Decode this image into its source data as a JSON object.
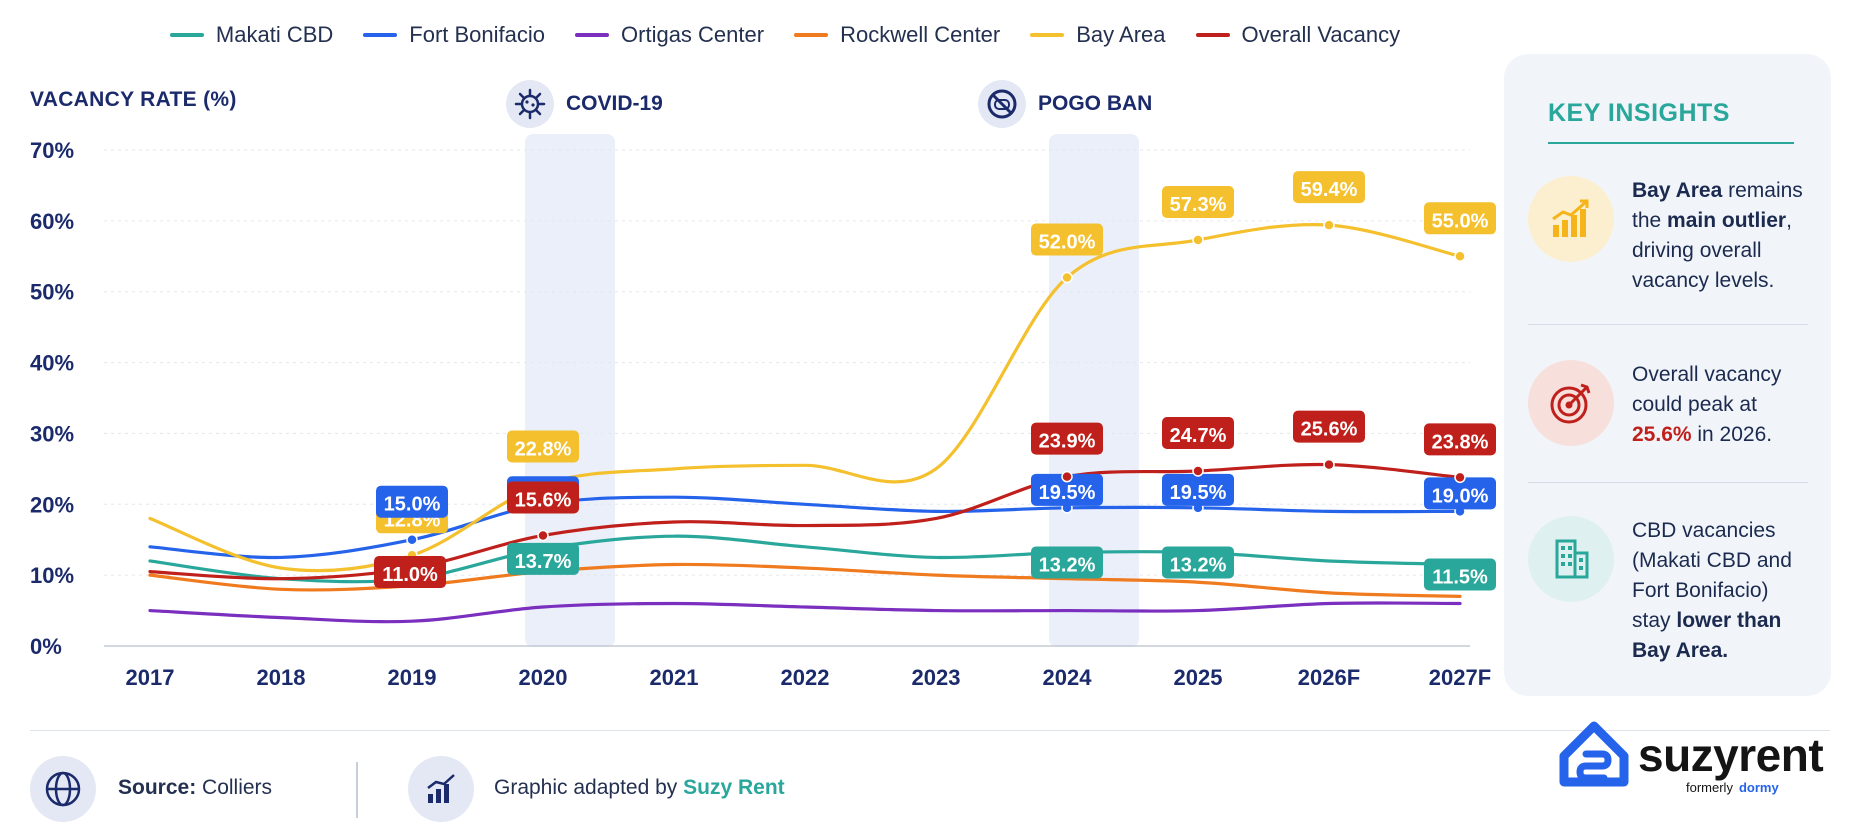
{
  "legend": [
    {
      "label": "Makati CBD",
      "color": "#2aa79b"
    },
    {
      "label": "Fort Bonifacio",
      "color": "#2563eb"
    },
    {
      "label": "Ortigas Center",
      "color": "#7b2fbe"
    },
    {
      "label": "Rockwell Center",
      "color": "#f07a1e"
    },
    {
      "label": "Bay Area",
      "color": "#f4c02d"
    },
    {
      "label": "Overall Vacancy",
      "color": "#c0201b"
    }
  ],
  "y_axis_title": "VACANCY RATE (%)",
  "events": {
    "covid": {
      "label": "COVID-19",
      "icon": "virus-icon"
    },
    "pogo": {
      "label": "POGO BAN",
      "icon": "ban-icon"
    }
  },
  "chart_data": {
    "type": "line",
    "ylabel": "VACANCY RATE (%)",
    "ylim": [
      0,
      70
    ],
    "yticks": [
      "0%",
      "10%",
      "20%",
      "30%",
      "40%",
      "50%",
      "60%",
      "70%"
    ],
    "categories": [
      "2017",
      "2018",
      "2019",
      "2020",
      "2021",
      "2022",
      "2023",
      "2024",
      "2025",
      "2026F",
      "2027F"
    ],
    "highlight_periods": [
      {
        "label": "COVID-19",
        "category": "2020"
      },
      {
        "label": "POGO BAN",
        "category": "2024"
      }
    ],
    "series": [
      {
        "name": "Makati CBD",
        "color": "#2aa79b",
        "values": [
          12.0,
          9.5,
          9.5,
          13.7,
          15.5,
          14.0,
          12.5,
          13.2,
          13.2,
          12.0,
          11.5
        ]
      },
      {
        "name": "Fort Bonifacio",
        "color": "#2563eb",
        "values": [
          14.0,
          12.5,
          15.0,
          20.0,
          21.0,
          20.0,
          19.0,
          19.5,
          19.5,
          19.0,
          19.0
        ]
      },
      {
        "name": "Ortigas Center",
        "color": "#7b2fbe",
        "values": [
          5.0,
          4.0,
          3.5,
          5.5,
          6.0,
          5.5,
          5.0,
          5.0,
          5.0,
          6.0,
          6.0
        ]
      },
      {
        "name": "Rockwell Center",
        "color": "#f07a1e",
        "values": [
          10.0,
          8.0,
          8.5,
          10.5,
          11.5,
          11.0,
          10.0,
          9.5,
          9.0,
          7.5,
          7.0
        ]
      },
      {
        "name": "Bay Area",
        "color": "#f4c02d",
        "values": [
          18.0,
          11.0,
          12.8,
          22.8,
          25.0,
          25.5,
          25.0,
          52.0,
          57.3,
          59.4,
          55.0
        ]
      },
      {
        "name": "Overall Vacancy",
        "color": "#c0201b",
        "values": [
          10.5,
          9.5,
          11.0,
          15.6,
          17.5,
          17.0,
          18.0,
          23.9,
          24.7,
          25.6,
          23.8
        ]
      }
    ],
    "data_labels": [
      {
        "series": "Bay Area",
        "category": "2019",
        "text": "12.8%",
        "color": "#f4c02d"
      },
      {
        "series": "Bay Area",
        "category": "2020",
        "text": "22.8%",
        "color": "#f4c02d"
      },
      {
        "series": "Bay Area",
        "category": "2024",
        "text": "52.0%",
        "color": "#f4c02d"
      },
      {
        "series": "Bay Area",
        "category": "2025",
        "text": "57.3%",
        "color": "#f4c02d"
      },
      {
        "series": "Bay Area",
        "category": "2026F",
        "text": "59.4%",
        "color": "#f4c02d"
      },
      {
        "series": "Bay Area",
        "category": "2027F",
        "text": "55.0%",
        "color": "#f4c02d"
      },
      {
        "series": "Fort Bonifacio",
        "category": "2019",
        "text": "15.0%",
        "color": "#2563eb"
      },
      {
        "series": "Fort Bonifacio",
        "category": "2020",
        "text": "20.0%",
        "color": "#2563eb"
      },
      {
        "series": "Fort Bonifacio",
        "category": "2024",
        "text": "19.5%",
        "color": "#2563eb"
      },
      {
        "series": "Fort Bonifacio",
        "category": "2025",
        "text": "19.5%",
        "color": "#2563eb"
      },
      {
        "series": "Fort Bonifacio",
        "category": "2027F",
        "text": "19.0%",
        "color": "#2563eb"
      },
      {
        "series": "Overall Vacancy",
        "category": "2019",
        "text": "11.0%",
        "color": "#c0201b"
      },
      {
        "series": "Overall Vacancy",
        "category": "2020",
        "text": "15.6%",
        "color": "#c0201b"
      },
      {
        "series": "Overall Vacancy",
        "category": "2024",
        "text": "23.9%",
        "color": "#c0201b"
      },
      {
        "series": "Overall Vacancy",
        "category": "2025",
        "text": "24.7%",
        "color": "#c0201b"
      },
      {
        "series": "Overall Vacancy",
        "category": "2026F",
        "text": "25.6%",
        "color": "#c0201b"
      },
      {
        "series": "Overall Vacancy",
        "category": "2027F",
        "text": "23.8%",
        "color": "#c0201b"
      },
      {
        "series": "Makati CBD",
        "category": "2020",
        "text": "13.7%",
        "color": "#2aa79b"
      },
      {
        "series": "Makati CBD",
        "category": "2024",
        "text": "13.2%",
        "color": "#2aa79b"
      },
      {
        "series": "Makati CBD",
        "category": "2025",
        "text": "13.2%",
        "color": "#2aa79b"
      },
      {
        "series": "Makati CBD",
        "category": "2027F",
        "text": "11.5%",
        "color": "#2aa79b"
      }
    ]
  },
  "insights": {
    "title": "KEY INSIGHTS",
    "items": [
      {
        "icon": "bar-chart-growth-icon",
        "parts": [
          [
            "b",
            "Bay Area"
          ],
          [
            "t",
            " remains the "
          ],
          [
            "b",
            "main outlier"
          ],
          [
            "t",
            ", driving overall vacancy levels."
          ]
        ]
      },
      {
        "icon": "target-icon",
        "parts": [
          [
            "t",
            "Overall vacancy could peak at "
          ],
          [
            "r",
            "25.6%"
          ],
          [
            "t",
            " in 2026."
          ]
        ]
      },
      {
        "icon": "building-icon",
        "parts": [
          [
            "t",
            "CBD vacancies (Makati CBD and Fort Bonifacio) stay "
          ],
          [
            "b",
            "lower than Bay Area."
          ]
        ]
      }
    ]
  },
  "footer": {
    "source_label": "Source:",
    "source_value": "Colliers",
    "adapted_prefix": "Graphic adapted by ",
    "adapted_brand": "Suzy Rent"
  },
  "brand": {
    "name": "suzyrent",
    "formerly_label": "formerly",
    "former_name": "dormy"
  }
}
